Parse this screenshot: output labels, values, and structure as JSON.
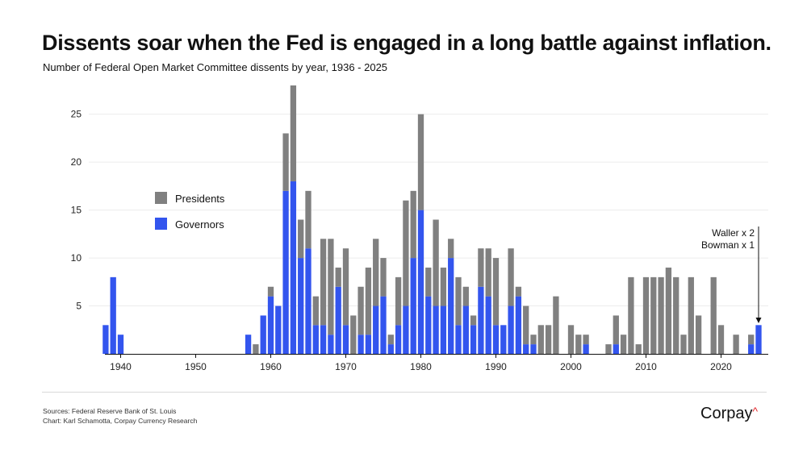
{
  "chart_data": {
    "type": "bar",
    "stacked": true,
    "title": "Dissents soar when the Fed is engaged in a long battle against inflation.",
    "subtitle": "Number of Federal Open Market Committee dissents by year, 1936 - 2025",
    "x": [
      1938,
      1939,
      1940,
      1957,
      1958,
      1959,
      1960,
      1961,
      1962,
      1963,
      1964,
      1965,
      1966,
      1967,
      1968,
      1969,
      1970,
      1971,
      1972,
      1973,
      1974,
      1975,
      1976,
      1977,
      1978,
      1979,
      1980,
      1981,
      1982,
      1983,
      1984,
      1985,
      1986,
      1987,
      1988,
      1989,
      1990,
      1991,
      1992,
      1993,
      1994,
      1995,
      1996,
      1997,
      1998,
      2000,
      2001,
      2002,
      2005,
      2006,
      2007,
      2008,
      2009,
      2010,
      2011,
      2012,
      2013,
      2014,
      2015,
      2016,
      2017,
      2019,
      2020,
      2022,
      2024,
      2025
    ],
    "series": [
      {
        "name": "Governors",
        "color": "#3355ee",
        "values": [
          3,
          8,
          2,
          2,
          0,
          4,
          6,
          5,
          17,
          18,
          10,
          11,
          3,
          3,
          2,
          7,
          3,
          0,
          2,
          2,
          5,
          6,
          1,
          3,
          5,
          10,
          15,
          6,
          5,
          5,
          10,
          3,
          5,
          3,
          7,
          6,
          3,
          3,
          5,
          6,
          1,
          1,
          0,
          0,
          0,
          0,
          0,
          1,
          0,
          1,
          0,
          0,
          0,
          0,
          0,
          0,
          0,
          0,
          0,
          0,
          0,
          0,
          0,
          0,
          1,
          3
        ]
      },
      {
        "name": "Presidents",
        "color": "#808080",
        "values": [
          0,
          0,
          0,
          0,
          1,
          0,
          1,
          0,
          6,
          10,
          4,
          6,
          3,
          9,
          10,
          2,
          8,
          4,
          5,
          7,
          7,
          4,
          1,
          5,
          11,
          7,
          10,
          3,
          9,
          4,
          2,
          5,
          2,
          1,
          4,
          5,
          7,
          0,
          6,
          1,
          4,
          1,
          3,
          3,
          6,
          3,
          2,
          1,
          1,
          3,
          2,
          8,
          1,
          8,
          8,
          8,
          9,
          8,
          2,
          8,
          4,
          8,
          3,
          2,
          1,
          0
        ]
      }
    ],
    "ylim": [
      0,
      28
    ],
    "yticks": [
      5,
      10,
      15,
      20,
      25
    ],
    "xlim": [
      1936,
      2026
    ],
    "xticks": [
      1940,
      1950,
      1960,
      1970,
      1980,
      1990,
      2000,
      2010,
      2020
    ],
    "grid": "horizontal",
    "legend": {
      "placement": "left",
      "entries": [
        "Presidents",
        "Governors"
      ]
    },
    "annotation": {
      "year": 2025,
      "lines": [
        "Waller x 2",
        "Bowman x 1"
      ]
    }
  },
  "footer": {
    "sources": "Sources: Federal Reserve Bank of St. Louis",
    "credit": "Chart: Karl Schamotta, Corpay Currency Research",
    "logo": "Corpay"
  }
}
